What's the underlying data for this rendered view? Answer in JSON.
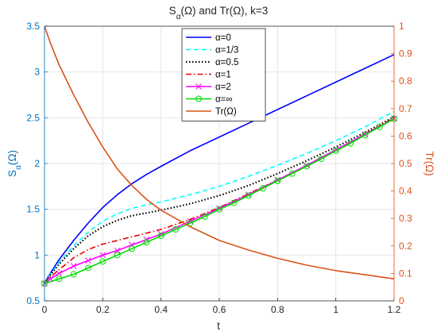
{
  "chart_data": {
    "type": "line",
    "title": "S_α(Ω) and Tr(Ω), k=3",
    "xlabel": "t",
    "ylabel_left": "S_α(Ω)",
    "ylabel_right": "Tr(Ω)",
    "xlim": [
      0,
      1.2
    ],
    "ylim_left": [
      0.5,
      3.5
    ],
    "ylim_right": [
      0,
      1
    ],
    "xticks": [
      "0",
      "0.2",
      "0.4",
      "0.6",
      "0.8",
      "1",
      "1.2"
    ],
    "yticks_left": [
      "0.5",
      "1",
      "1.5",
      "2",
      "2.5",
      "3",
      "3.5"
    ],
    "yticks_right": [
      "0",
      "0.1",
      "0.2",
      "0.3",
      "0.4",
      "0.5",
      "0.6",
      "0.7",
      "0.8",
      "0.9",
      "1"
    ],
    "grid": true,
    "legend_position": "top-center",
    "colors": {
      "left_axis": "#0072BD",
      "right_axis": "#D95319",
      "grid": "#e6e6e6",
      "axes": "#262626"
    },
    "series": [
      {
        "name": "α=0",
        "axis": "left",
        "color": "#0000ff",
        "dash": "solid",
        "marker": "none",
        "x": [
          0,
          0.02,
          0.05,
          0.1,
          0.15,
          0.2,
          0.25,
          0.3,
          0.35,
          0.4,
          0.5,
          0.6,
          0.7,
          0.8,
          0.9,
          1.0,
          1.1,
          1.2
        ],
        "y": [
          0.69,
          0.8,
          0.95,
          1.16,
          1.35,
          1.52,
          1.66,
          1.78,
          1.88,
          1.97,
          2.14,
          2.29,
          2.44,
          2.59,
          2.74,
          2.89,
          3.04,
          3.19
        ]
      },
      {
        "name": "α=1/3",
        "axis": "left",
        "color": "#00ffff",
        "dash": "dashed",
        "marker": "none",
        "x": [
          0,
          0.02,
          0.05,
          0.1,
          0.15,
          0.2,
          0.25,
          0.3,
          0.35,
          0.4,
          0.5,
          0.6,
          0.7,
          0.8,
          0.9,
          1.0,
          1.1,
          1.2
        ],
        "y": [
          0.69,
          0.79,
          0.92,
          1.1,
          1.25,
          1.37,
          1.45,
          1.51,
          1.55,
          1.58,
          1.66,
          1.75,
          1.86,
          1.98,
          2.11,
          2.25,
          2.4,
          2.57
        ]
      },
      {
        "name": "α=0.5",
        "axis": "left",
        "color": "#000000",
        "dash": "dotted",
        "marker": "none",
        "x": [
          0,
          0.02,
          0.05,
          0.1,
          0.15,
          0.2,
          0.25,
          0.3,
          0.35,
          0.4,
          0.5,
          0.6,
          0.7,
          0.8,
          0.9,
          1.0,
          1.1,
          1.2
        ],
        "y": [
          0.69,
          0.78,
          0.9,
          1.07,
          1.21,
          1.31,
          1.38,
          1.43,
          1.46,
          1.49,
          1.56,
          1.65,
          1.76,
          1.89,
          2.03,
          2.18,
          2.34,
          2.51
        ]
      },
      {
        "name": "α=1",
        "axis": "left",
        "color": "#e60000",
        "dash": "dashdot",
        "marker": "none",
        "x": [
          0,
          0.02,
          0.05,
          0.1,
          0.15,
          0.2,
          0.25,
          0.3,
          0.35,
          0.4,
          0.5,
          0.6,
          0.7,
          0.8,
          0.9,
          1.0,
          1.1,
          1.2
        ],
        "y": [
          0.69,
          0.76,
          0.84,
          0.97,
          1.06,
          1.12,
          1.16,
          1.2,
          1.24,
          1.28,
          1.39,
          1.52,
          1.67,
          1.82,
          1.98,
          2.15,
          2.32,
          2.5
        ]
      },
      {
        "name": "α=2",
        "axis": "left",
        "color": "#ff00ff",
        "dash": "solid",
        "marker": "x",
        "x": [
          0,
          0.02,
          0.05,
          0.1,
          0.15,
          0.2,
          0.25,
          0.3,
          0.35,
          0.4,
          0.5,
          0.6,
          0.7,
          0.8,
          0.9,
          1.0,
          1.1,
          1.2
        ],
        "y": [
          0.69,
          0.74,
          0.8,
          0.88,
          0.94,
          1.0,
          1.05,
          1.11,
          1.17,
          1.23,
          1.37,
          1.51,
          1.66,
          1.82,
          1.98,
          2.15,
          2.32,
          2.49
        ]
      },
      {
        "name": "α=∞",
        "axis": "left",
        "color": "#00dd00",
        "dash": "solid",
        "marker": "o",
        "x": [
          0,
          0.05,
          0.1,
          0.15,
          0.2,
          0.25,
          0.3,
          0.35,
          0.4,
          0.45,
          0.5,
          0.55,
          0.6,
          0.65,
          0.7,
          0.75,
          0.8,
          0.85,
          0.9,
          0.95,
          1.0,
          1.05,
          1.1,
          1.15,
          1.2
        ],
        "y": [
          0.69,
          0.74,
          0.79,
          0.86,
          0.93,
          1.0,
          1.07,
          1.14,
          1.21,
          1.28,
          1.35,
          1.42,
          1.5,
          1.57,
          1.65,
          1.73,
          1.81,
          1.89,
          1.97,
          2.05,
          2.14,
          2.22,
          2.31,
          2.4,
          2.49
        ]
      },
      {
        "name": "Tr(Ω)",
        "axis": "right",
        "color": "#D95319",
        "dash": "solid",
        "marker": "none",
        "x": [
          0,
          0.02,
          0.05,
          0.1,
          0.15,
          0.2,
          0.25,
          0.3,
          0.35,
          0.4,
          0.5,
          0.6,
          0.7,
          0.8,
          0.9,
          1.0,
          1.1,
          1.2
        ],
        "y": [
          1.0,
          0.94,
          0.86,
          0.75,
          0.65,
          0.56,
          0.48,
          0.42,
          0.37,
          0.33,
          0.27,
          0.22,
          0.185,
          0.155,
          0.13,
          0.11,
          0.095,
          0.08
        ]
      }
    ]
  }
}
